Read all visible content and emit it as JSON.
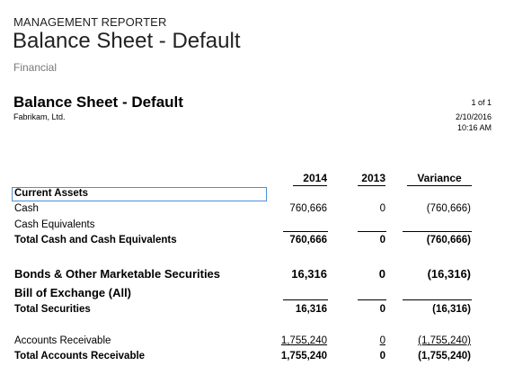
{
  "header": {
    "app_name": "MANAGEMENT REPORTER",
    "report_name": "Balance Sheet - Default",
    "category": "Financial"
  },
  "report": {
    "title": "Balance Sheet - Default",
    "company": "Fabrikam, Ltd.",
    "page": "1 of 1",
    "date": "2/10/2016",
    "time": "10:16 AM"
  },
  "columns": [
    "2014",
    "2013",
    "Variance"
  ],
  "rows": [
    {
      "label": "Current Assets",
      "v2014": "",
      "v2013": "",
      "variance": ""
    },
    {
      "label": "Cash",
      "v2014": "760,666",
      "v2013": "0",
      "variance": "(760,666)"
    },
    {
      "label": "Cash Equivalents",
      "v2014": "",
      "v2013": "",
      "variance": ""
    },
    {
      "label": "Total Cash and Cash Equivalents",
      "v2014": "760,666",
      "v2013": "0",
      "variance": "(760,666)"
    },
    {
      "label": "Bonds & Other Marketable Securities",
      "v2014": "16,316",
      "v2013": "0",
      "variance": "(16,316)"
    },
    {
      "label": "Bill of Exchange (All)",
      "v2014": "",
      "v2013": "",
      "variance": ""
    },
    {
      "label": "Total Securities",
      "v2014": "16,316",
      "v2013": "0",
      "variance": "(16,316)"
    },
    {
      "label": "Accounts Receivable",
      "v2014": "1,755,240",
      "v2013": "0",
      "variance": "(1,755,240)"
    },
    {
      "label": "Total Accounts Receivable",
      "v2014": "1,755,240",
      "v2013": "0",
      "variance": "(1,755,240)"
    }
  ]
}
